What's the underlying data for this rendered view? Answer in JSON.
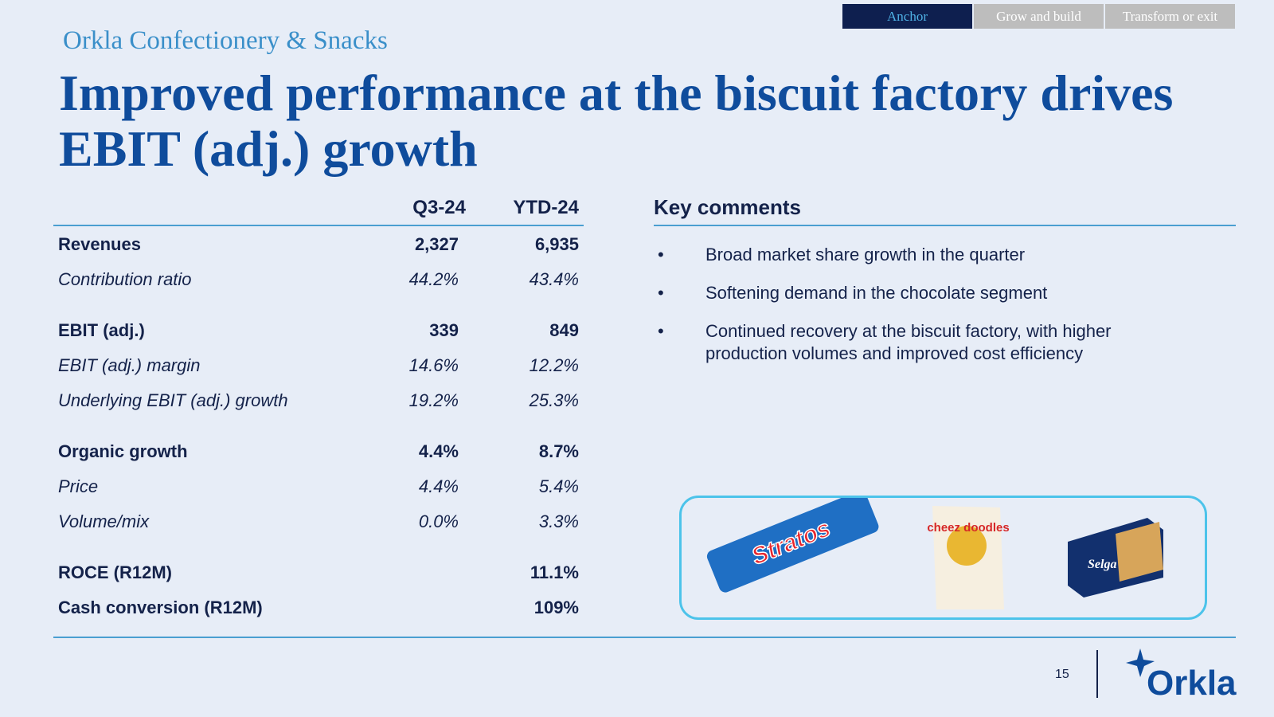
{
  "tabs": {
    "items": [
      "Anchor",
      "Grow and build",
      "Transform or exit"
    ],
    "active": 0
  },
  "header": {
    "subtitle": "Orkla Confectionery & Snacks",
    "title": "Improved performance at the biscuit factory drives EBIT (adj.) growth"
  },
  "table": {
    "columns": [
      "Q3-24",
      "YTD-24"
    ],
    "groups": [
      {
        "rows": [
          {
            "label": "Revenues",
            "emphasis": "bold",
            "q3": "2,327",
            "ytd": "6,935"
          },
          {
            "label": "Contribution ratio",
            "emphasis": "italic",
            "q3": "44.2%",
            "ytd": "43.4%"
          }
        ]
      },
      {
        "rows": [
          {
            "label": "EBIT (adj.)",
            "emphasis": "bold",
            "q3": "339",
            "ytd": "849"
          },
          {
            "label": "EBIT (adj.) margin",
            "emphasis": "italic",
            "q3": "14.6%",
            "ytd": "12.2%"
          },
          {
            "label": "Underlying EBIT (adj.) growth",
            "emphasis": "italic",
            "q3": "19.2%",
            "ytd": "25.3%"
          }
        ]
      },
      {
        "rows": [
          {
            "label": "Organic growth",
            "emphasis": "bold",
            "q3": "4.4%",
            "ytd": "8.7%"
          },
          {
            "label": "Price",
            "emphasis": "italic",
            "q3": "4.4%",
            "ytd": "5.4%"
          },
          {
            "label": "Volume/mix",
            "emphasis": "italic",
            "q3": "0.0%",
            "ytd": "3.3%"
          }
        ]
      },
      {
        "rows": [
          {
            "label": "ROCE (R12M)",
            "emphasis": "bold",
            "ytd": "11.1%"
          },
          {
            "label": "Cash conversion (R12M)",
            "emphasis": "bold",
            "ytd": "109%"
          }
        ]
      }
    ]
  },
  "comments": {
    "title": "Key comments",
    "items": [
      "Broad market share growth in the quarter",
      "Softening demand in the chocolate segment",
      "Continued recovery at the biscuit factory, with higher production volumes and improved cost efficiency"
    ]
  },
  "products": [
    "Stratos",
    "cheez doodles",
    "Selga"
  ],
  "footer": {
    "page_number": "15",
    "logo": "Orkla"
  }
}
